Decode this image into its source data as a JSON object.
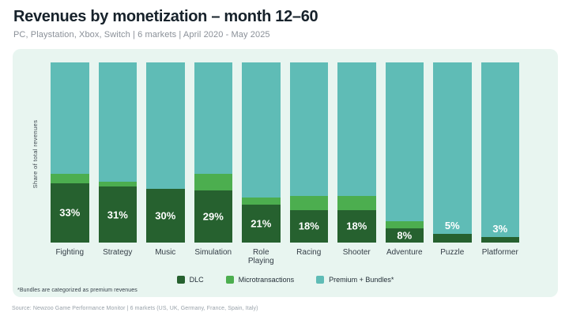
{
  "header": {
    "title": "Revenues by monetization – month 12–60",
    "subtitle": "PC, Playstation, Xbox, Switch | 6 markets | April 2020 - May 2025"
  },
  "chart_data": {
    "type": "bar",
    "stacked": true,
    "title": "Revenues by monetization – month 12–60",
    "subtitle": "PC, Playstation, Xbox, Switch | 6 markets | April 2020 - May 2025",
    "ylabel": "Share of total revenues",
    "xlabel": "",
    "ylim": [
      0,
      100
    ],
    "grid": false,
    "legend_position": "bottom",
    "categories": [
      "Fighting",
      "Strategy",
      "Music",
      "Simulation",
      "Role Playing",
      "Racing",
      "Shooter",
      "Adventure",
      "Puzzle",
      "Platformer"
    ],
    "series": [
      {
        "name": "DLC",
        "color": "#26612f",
        "values": [
          33,
          31,
          30,
          29,
          21,
          18,
          18,
          8,
          5,
          3
        ]
      },
      {
        "name": "Microtransactions",
        "color": "#4cae4f",
        "values": [
          5,
          3,
          0,
          9,
          4,
          8,
          8,
          4,
          0,
          0
        ]
      },
      {
        "name": "Premium + Bundles*",
        "color": "#5fbcb6",
        "values": [
          62,
          66,
          70,
          62,
          75,
          74,
          74,
          88,
          95,
          97
        ]
      }
    ],
    "bar_labels": [
      "33%",
      "31%",
      "30%",
      "29%",
      "21%",
      "18%",
      "18%",
      "8%",
      "5%",
      "3%"
    ]
  },
  "legend": {
    "items": [
      {
        "label": "DLC",
        "color": "#26612f"
      },
      {
        "label": "Microtransactions",
        "color": "#4cae4f"
      },
      {
        "label": "Premium + Bundles*",
        "color": "#5fbcb6"
      }
    ]
  },
  "footnote": "*Bundles are categorized as premium revenues",
  "source": "Source: Newzoo Game Performance Monitor | 6 markets (US, UK, Germany, France, Spain, Italy)",
  "colors": {
    "panel_bg": "#e8f5f0",
    "dlc": "#26612f",
    "microtransactions": "#4cae4f",
    "premium_bundles": "#5fbcb6",
    "title_text": "#17222b",
    "subtitle_text": "#8a9098"
  }
}
